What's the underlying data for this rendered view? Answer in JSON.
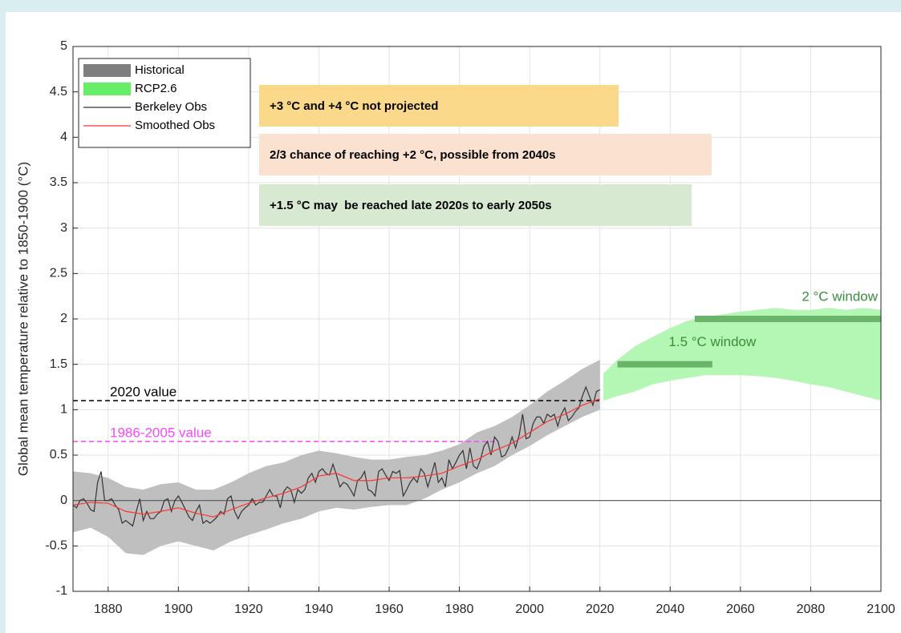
{
  "chart_data": {
    "type": "line",
    "ylabel": "Global mean temperature relative to 1850-1900 (°C)",
    "xlim": [
      1870,
      2100
    ],
    "ylim": [
      -1,
      5
    ],
    "xticks": [
      1880,
      1900,
      1920,
      1940,
      1960,
      1980,
      2000,
      2020,
      2040,
      2060,
      2080,
      2100
    ],
    "yticks": [
      -1,
      -0.5,
      0,
      0.5,
      1,
      1.5,
      2,
      2.5,
      3,
      3.5,
      4,
      4.5,
      5
    ],
    "grid": true,
    "legend": "upper left",
    "bands": [
      {
        "name": "Historical",
        "color": "#bfbfbf",
        "legend_color": "#7f7f7f",
        "x": [
          1870,
          1875,
          1880,
          1885,
          1890,
          1895,
          1900,
          1905,
          1910,
          1915,
          1920,
          1925,
          1930,
          1935,
          1940,
          1945,
          1950,
          1955,
          1960,
          1965,
          1970,
          1975,
          1980,
          1985,
          1990,
          1995,
          2000,
          2005,
          2010,
          2015,
          2020
        ],
        "lower": [
          -0.35,
          -0.3,
          -0.4,
          -0.58,
          -0.6,
          -0.5,
          -0.45,
          -0.5,
          -0.55,
          -0.45,
          -0.38,
          -0.32,
          -0.25,
          -0.2,
          -0.12,
          -0.08,
          -0.1,
          -0.07,
          -0.05,
          -0.05,
          0.02,
          0.12,
          0.2,
          0.3,
          0.38,
          0.5,
          0.6,
          0.72,
          0.82,
          0.92,
          1.0
        ],
        "upper": [
          0.32,
          0.3,
          0.25,
          0.15,
          0.12,
          0.18,
          0.2,
          0.12,
          0.12,
          0.2,
          0.3,
          0.38,
          0.42,
          0.5,
          0.55,
          0.52,
          0.48,
          0.45,
          0.45,
          0.48,
          0.5,
          0.55,
          0.62,
          0.75,
          0.82,
          0.92,
          1.05,
          1.2,
          1.32,
          1.45,
          1.55
        ]
      },
      {
        "name": "RCP2.6",
        "color": "#b4f7b4",
        "legend_color": "#66ee66",
        "x": [
          2021,
          2025,
          2030,
          2035,
          2040,
          2045,
          2050,
          2055,
          2060,
          2065,
          2070,
          2075,
          2080,
          2085,
          2090,
          2095,
          2100
        ],
        "lower": [
          1.1,
          1.15,
          1.2,
          1.28,
          1.32,
          1.35,
          1.38,
          1.38,
          1.38,
          1.37,
          1.35,
          1.32,
          1.28,
          1.25,
          1.2,
          1.15,
          1.1
        ],
        "upper": [
          1.4,
          1.55,
          1.7,
          1.8,
          1.9,
          1.98,
          2.02,
          2.05,
          2.08,
          2.1,
          2.12,
          2.1,
          2.1,
          2.12,
          2.1,
          2.12,
          2.1
        ]
      }
    ],
    "series": [
      {
        "name": "Berkeley Obs",
        "color": "#333333",
        "x": [
          1870,
          1871,
          1872,
          1873,
          1874,
          1875,
          1876,
          1877,
          1878,
          1879,
          1880,
          1881,
          1882,
          1883,
          1884,
          1885,
          1886,
          1887,
          1888,
          1889,
          1890,
          1891,
          1892,
          1893,
          1894,
          1895,
          1896,
          1897,
          1898,
          1899,
          1900,
          1901,
          1902,
          1903,
          1904,
          1905,
          1906,
          1907,
          1908,
          1909,
          1910,
          1911,
          1912,
          1913,
          1914,
          1915,
          1916,
          1917,
          1918,
          1919,
          1920,
          1921,
          1922,
          1923,
          1924,
          1925,
          1926,
          1927,
          1928,
          1929,
          1930,
          1931,
          1932,
          1933,
          1934,
          1935,
          1936,
          1937,
          1938,
          1939,
          1940,
          1941,
          1942,
          1943,
          1944,
          1945,
          1946,
          1947,
          1948,
          1949,
          1950,
          1951,
          1952,
          1953,
          1954,
          1955,
          1956,
          1957,
          1958,
          1959,
          1960,
          1961,
          1962,
          1963,
          1964,
          1965,
          1966,
          1967,
          1968,
          1969,
          1970,
          1971,
          1972,
          1973,
          1974,
          1975,
          1976,
          1977,
          1978,
          1979,
          1980,
          1981,
          1982,
          1983,
          1984,
          1985,
          1986,
          1987,
          1988,
          1989,
          1990,
          1991,
          1992,
          1993,
          1994,
          1995,
          1996,
          1997,
          1998,
          1999,
          2000,
          2001,
          2002,
          2003,
          2004,
          2005,
          2006,
          2007,
          2008,
          2009,
          2010,
          2011,
          2012,
          2013,
          2014,
          2015,
          2016,
          2017,
          2018,
          2019,
          2020
        ],
        "values": [
          -0.05,
          -0.08,
          0.0,
          0.02,
          -0.03,
          -0.1,
          -0.12,
          0.2,
          0.32,
          0.0,
          0.0,
          0.02,
          -0.05,
          -0.1,
          -0.25,
          -0.22,
          -0.25,
          -0.28,
          -0.12,
          0.02,
          -0.22,
          -0.12,
          -0.2,
          -0.2,
          -0.15,
          -0.12,
          0.0,
          0.02,
          -0.12,
          0.0,
          0.05,
          -0.02,
          -0.1,
          -0.18,
          -0.22,
          -0.12,
          -0.05,
          -0.25,
          -0.22,
          -0.25,
          -0.22,
          -0.18,
          -0.12,
          -0.15,
          0.02,
          0.05,
          -0.12,
          -0.2,
          -0.12,
          -0.08,
          -0.05,
          0.02,
          -0.05,
          -0.02,
          -0.02,
          0.05,
          0.12,
          0.05,
          0.05,
          -0.08,
          0.1,
          0.15,
          0.12,
          -0.02,
          0.12,
          0.08,
          0.12,
          0.25,
          0.3,
          0.2,
          0.32,
          0.35,
          0.3,
          0.28,
          0.4,
          0.28,
          0.15,
          0.2,
          0.18,
          0.12,
          0.05,
          0.22,
          0.25,
          0.32,
          0.12,
          0.1,
          0.05,
          0.32,
          0.35,
          0.28,
          0.22,
          0.32,
          0.3,
          0.33,
          0.05,
          0.12,
          0.2,
          0.25,
          0.2,
          0.35,
          0.3,
          0.15,
          0.28,
          0.42,
          0.2,
          0.25,
          0.15,
          0.45,
          0.35,
          0.42,
          0.5,
          0.55,
          0.35,
          0.58,
          0.38,
          0.35,
          0.45,
          0.6,
          0.65,
          0.5,
          0.7,
          0.65,
          0.48,
          0.5,
          0.58,
          0.7,
          0.58,
          0.72,
          0.95,
          0.68,
          0.7,
          0.85,
          0.92,
          0.92,
          0.85,
          0.95,
          0.92,
          0.95,
          0.82,
          0.95,
          1.02,
          0.88,
          0.92,
          0.98,
          1.02,
          1.15,
          1.25,
          1.15,
          1.05,
          1.2,
          1.22
        ]
      },
      {
        "name": "Smoothed Obs",
        "color": "#ff3333",
        "x": [
          1870,
          1875,
          1880,
          1885,
          1890,
          1895,
          1900,
          1905,
          1910,
          1915,
          1920,
          1925,
          1930,
          1935,
          1940,
          1945,
          1950,
          1955,
          1960,
          1965,
          1970,
          1975,
          1980,
          1985,
          1990,
          1995,
          2000,
          2005,
          2010,
          2015,
          2020
        ],
        "values": [
          -0.05,
          -0.02,
          -0.03,
          -0.12,
          -0.15,
          -0.12,
          -0.08,
          -0.14,
          -0.18,
          -0.1,
          -0.03,
          0.03,
          0.08,
          0.15,
          0.27,
          0.3,
          0.22,
          0.22,
          0.25,
          0.25,
          0.27,
          0.3,
          0.38,
          0.45,
          0.55,
          0.63,
          0.75,
          0.87,
          0.95,
          1.05,
          1.12
        ]
      }
    ],
    "reference_lines": [
      {
        "label": "2020 value",
        "value": 1.1,
        "x_range": [
          1870,
          2020
        ],
        "color": "#000000"
      },
      {
        "label": "1986-2005 value",
        "value": 0.65,
        "x_range": [
          1870,
          1990
        ],
        "color": "#ff44ff"
      }
    ],
    "windows": [
      {
        "label": "1.5 °C window",
        "value": 1.5,
        "x_range": [
          2025,
          2052
        ],
        "color": "#6ab46a"
      },
      {
        "label": "2 °C window",
        "value": 2,
        "x_range": [
          2047,
          2100
        ],
        "color": "#6ab46a"
      }
    ],
    "annotations": [
      {
        "text": "+3 °C and +4 °C not projected",
        "color": "#fbd98a"
      },
      {
        "text": "2/3 chance of reaching +2 °C, possible from 2040s",
        "color": "#fbe1cf"
      },
      {
        "text": "+1.5 °C may  be reached late 2020s to early 2050s",
        "color": "#d7e9d0"
      }
    ]
  }
}
